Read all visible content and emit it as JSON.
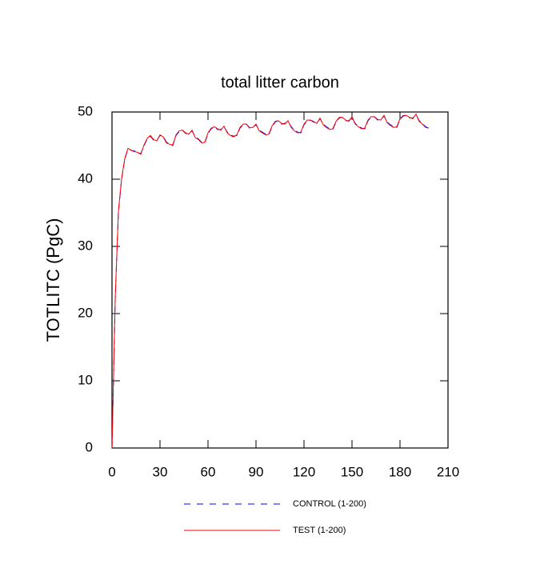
{
  "chart_data": {
    "type": "line",
    "title": "total litter carbon",
    "ylabel": "TOTLITC  (PgC)",
    "x": [
      0,
      2,
      4,
      6,
      8,
      10,
      12,
      14,
      16,
      18,
      20,
      22,
      24,
      26,
      28,
      30,
      32,
      34,
      36,
      38,
      40,
      42,
      44,
      46,
      48,
      50,
      52,
      54,
      56,
      58,
      60,
      62,
      64,
      66,
      68,
      70,
      72,
      74,
      76,
      78,
      80,
      82,
      84,
      86,
      88,
      90,
      92,
      94,
      96,
      98,
      100,
      102,
      104,
      106,
      108,
      110,
      112,
      114,
      116,
      118,
      120,
      122,
      124,
      126,
      128,
      130,
      132,
      134,
      136,
      138,
      140,
      142,
      144,
      146,
      148,
      150,
      152,
      154,
      156,
      158,
      160,
      162,
      164,
      166,
      168,
      170,
      172,
      174,
      176,
      178,
      180,
      182,
      184,
      186,
      188,
      190,
      192,
      194,
      196,
      198
    ],
    "series": [
      {
        "name": "CONTROL (1-200)",
        "color": "#0000ff",
        "dash": true,
        "values": [
          0,
          22,
          35,
          40,
          43,
          44.5,
          44.3,
          44.2,
          44,
          43.8,
          45,
          46,
          46.4,
          45.8,
          45.8,
          46.5,
          46.4,
          45.5,
          45.3,
          45,
          46.5,
          47.1,
          47.3,
          46.8,
          46.8,
          47.2,
          46.3,
          46,
          45.5,
          45.4,
          46.8,
          47.5,
          47.8,
          47.4,
          47.4,
          47.8,
          47,
          46.6,
          46.4,
          46.5,
          47.6,
          48.1,
          48.2,
          47.6,
          47.8,
          48.1,
          47.3,
          47,
          46.7,
          46.6,
          47.8,
          48.5,
          48.7,
          48.2,
          48.3,
          48.6,
          47.8,
          47.3,
          47,
          46.9,
          48.1,
          48.7,
          48.8,
          48.5,
          48.4,
          49,
          48.2,
          47.8,
          47.5,
          47.4,
          48.5,
          49.1,
          49.2,
          48.7,
          48.7,
          49.2,
          48.3,
          47.9,
          47.6,
          47.5,
          48.7,
          49.2,
          49.3,
          48.8,
          48.9,
          49.4,
          48.5,
          48.1,
          47.8,
          47.7,
          48.9,
          49.4,
          49.5,
          49.1,
          49.1,
          49.6,
          48.7,
          48.3,
          47.8,
          47.6
        ]
      },
      {
        "name": "TEST (1-200)",
        "color": "#ff0000",
        "dash": false,
        "values": [
          0,
          22.3,
          35.2,
          40.1,
          43.1,
          44.6,
          44.3,
          44.1,
          44,
          43.7,
          45.1,
          46.1,
          46.5,
          45.9,
          45.7,
          46.6,
          46.3,
          45.4,
          45.2,
          45.1,
          46.6,
          47.2,
          47.3,
          46.9,
          46.7,
          47.3,
          46.2,
          45.9,
          45.4,
          45.5,
          46.9,
          47.6,
          47.8,
          47.5,
          47.3,
          47.9,
          46.9,
          46.5,
          46.3,
          46.6,
          47.7,
          48.2,
          48.2,
          47.7,
          47.7,
          48.2,
          47.2,
          46.9,
          46.6,
          46.7,
          47.9,
          48.6,
          48.7,
          48.3,
          48.2,
          48.7,
          47.7,
          47.2,
          46.9,
          47,
          48.2,
          48.8,
          48.8,
          48.6,
          48.3,
          49.1,
          48.1,
          47.7,
          47.4,
          47.5,
          48.6,
          49.2,
          49.2,
          48.8,
          48.6,
          49.3,
          48.2,
          47.8,
          47.5,
          47.6,
          48.8,
          49.3,
          49.3,
          48.9,
          48.8,
          49.5,
          48.4,
          48,
          47.7,
          47.8,
          49,
          49.5,
          49.5,
          49.2,
          49,
          49.7,
          48.6,
          48.2,
          47.7,
          47.6
        ]
      }
    ],
    "xlim": [
      0,
      210
    ],
    "xticks": [
      0,
      30,
      60,
      90,
      120,
      150,
      180,
      210
    ],
    "ylim": [
      0,
      50
    ],
    "yticks": [
      0,
      10,
      20,
      30,
      40,
      50
    ]
  }
}
